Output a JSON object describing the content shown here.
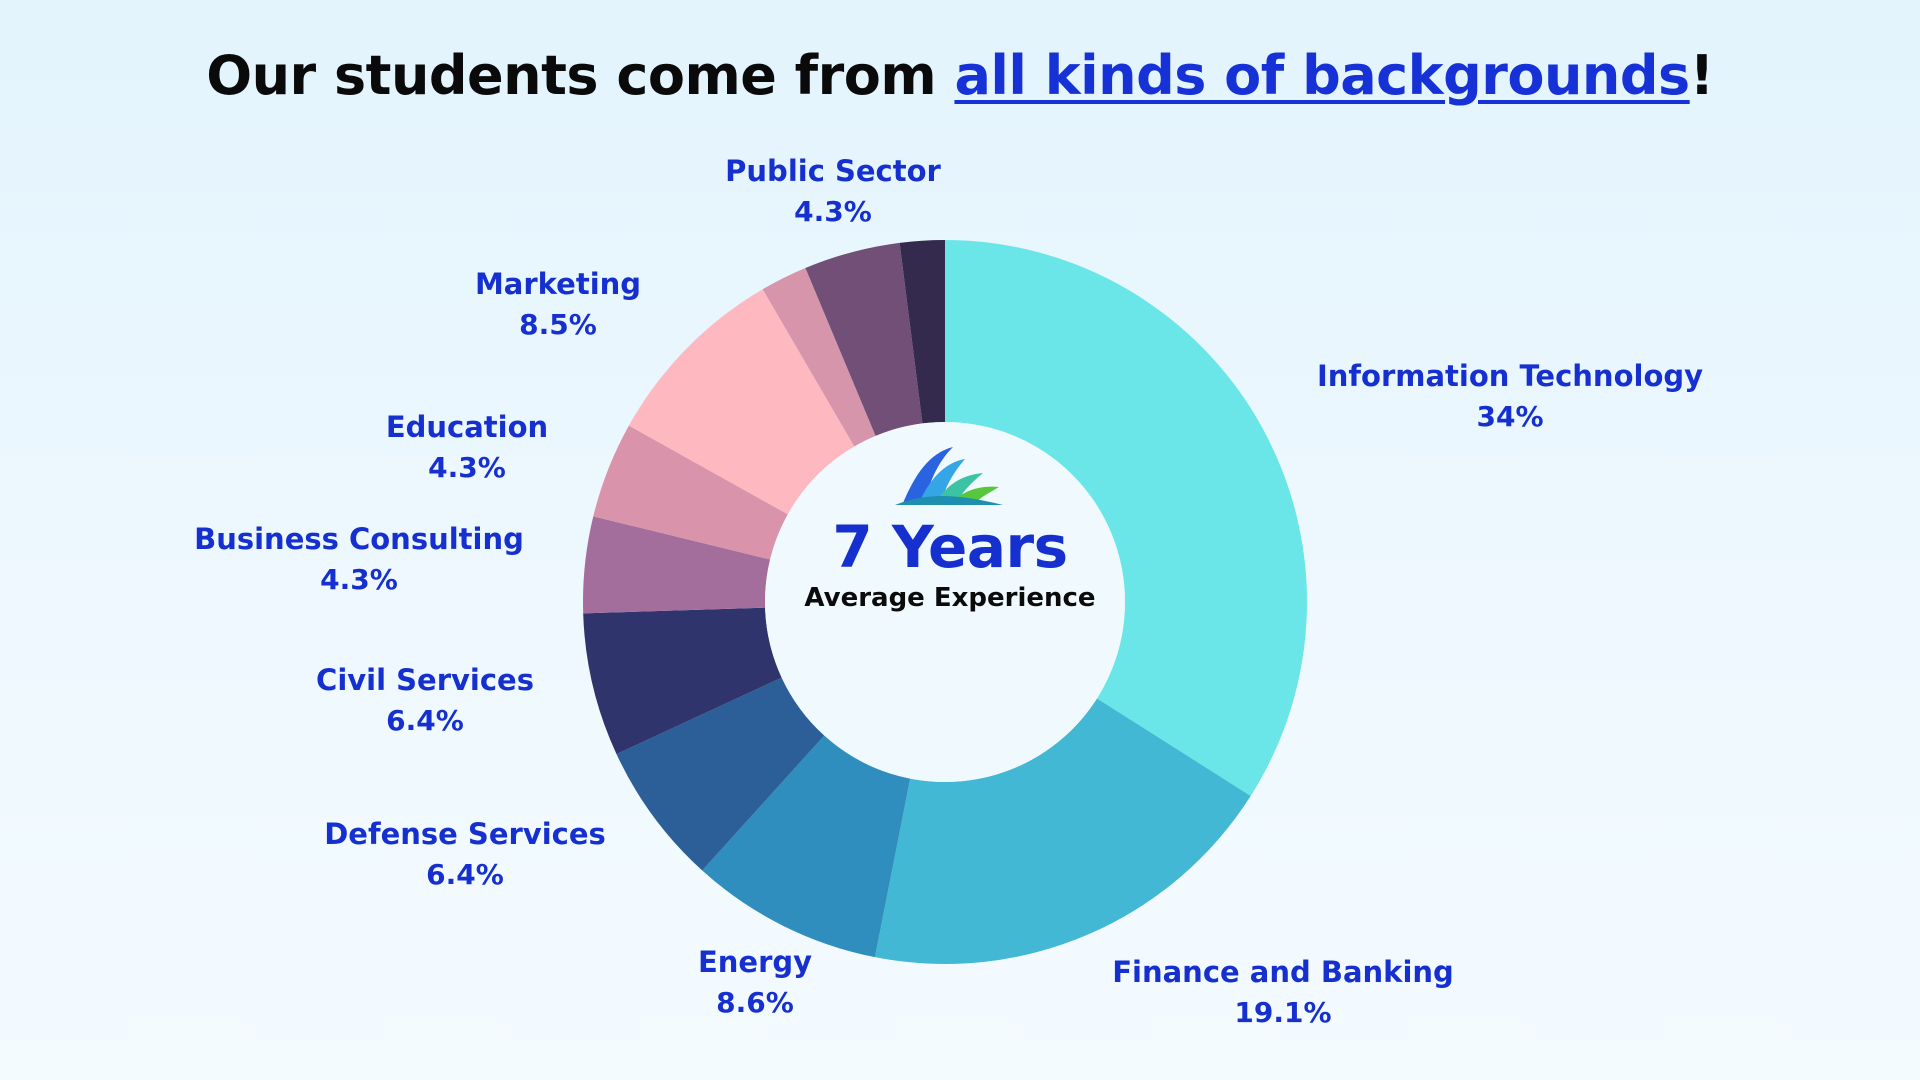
{
  "page": {
    "title_prefix": "Our students come from ",
    "title_link": "all kinds of backgrounds",
    "title_suffix": "!"
  },
  "center": {
    "value": "7 Years",
    "caption": "Average Experience"
  },
  "icons": {
    "logo": "book-logo-icon"
  },
  "chart_data": {
    "type": "pie",
    "title": "",
    "slices": [
      {
        "name": "Information Technology",
        "value": 34,
        "label": "34%",
        "color": "#6ae5e8"
      },
      {
        "name": "Finance and Banking",
        "value": 19.1,
        "label": "19.1%",
        "color": "#43b8d4"
      },
      {
        "name": "Energy",
        "value": 8.6,
        "label": "8.6%",
        "color": "#2f8ebd"
      },
      {
        "name": "Defense Services",
        "value": 6.4,
        "label": "6.4%",
        "color": "#2c5f98"
      },
      {
        "name": "Civil Services",
        "value": 6.4,
        "label": "6.4%",
        "color": "#2f346c"
      },
      {
        "name": "Business Consulting",
        "value": 4.3,
        "label": "4.3%",
        "color": "#a46e9c"
      },
      {
        "name": "Education",
        "value": 4.3,
        "label": "4.3%",
        "color": "#d994ac"
      },
      {
        "name": "Marketing",
        "value": 8.5,
        "label": "8.5%",
        "color": "#feb8bf"
      },
      {
        "name": "",
        "value": 2.1,
        "label": "",
        "color": "#d695aa"
      },
      {
        "name": "Public Sector",
        "value": 4.3,
        "label": "4.3%",
        "color": "#714f76"
      },
      {
        "name": "",
        "value": 2.0,
        "label": "",
        "color": "#342a4d"
      }
    ]
  }
}
